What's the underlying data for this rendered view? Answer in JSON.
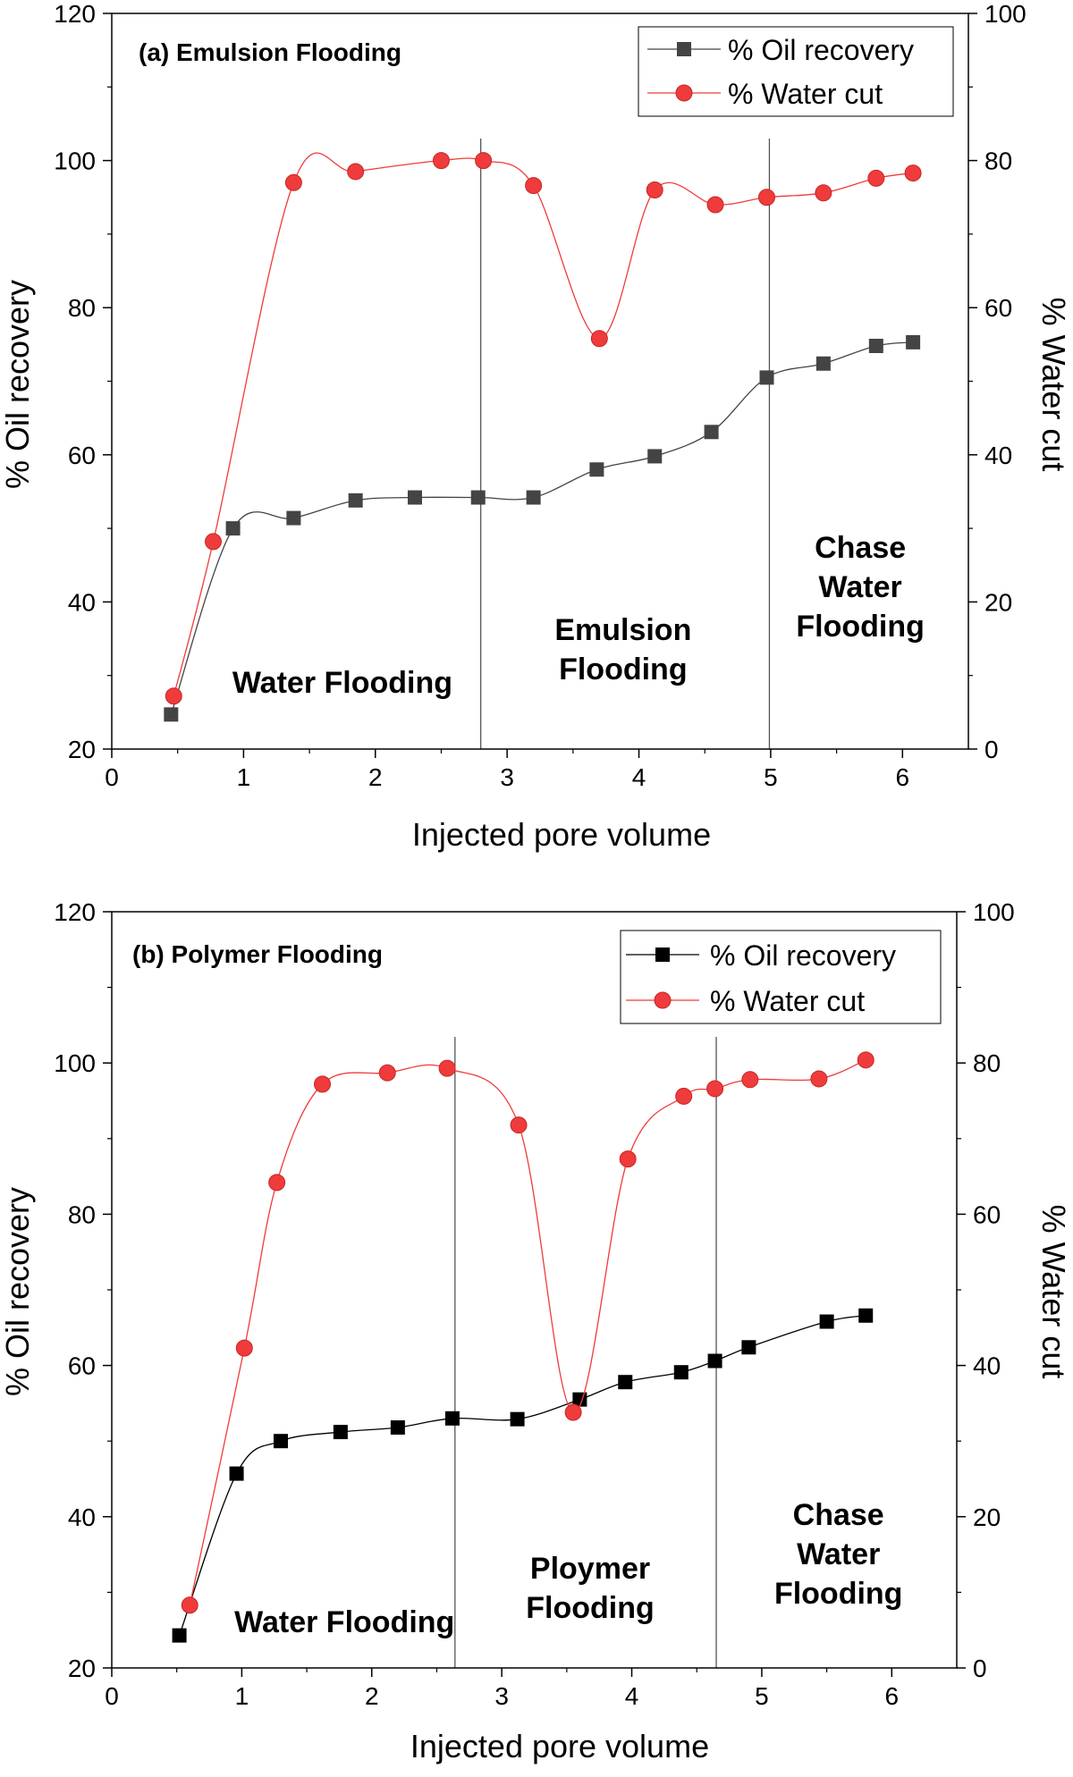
{
  "figure": {
    "background": "#ffffff",
    "colors": {
      "oil": "#444444",
      "oil_b": "#000000",
      "water": "#ef3b3b",
      "water_stroke": "#c62828",
      "axis": "#000000",
      "divider": "#555555"
    }
  },
  "chart_data": [
    {
      "id": "a",
      "type": "line",
      "title": "(a) Emulsion Flooding",
      "xlabel": "Injected pore volume",
      "ylabel": "% Oil recovery",
      "y2label": "% Water cut",
      "xlim": [
        0,
        6.5
      ],
      "ylim": [
        20,
        120
      ],
      "y2lim": [
        0,
        100
      ],
      "xticks": [
        0,
        1,
        2,
        3,
        4,
        5,
        6
      ],
      "yticks": [
        20,
        40,
        60,
        80,
        100,
        120
      ],
      "y2ticks": [
        0,
        20,
        40,
        60,
        80,
        100
      ],
      "legend_position": "top-right",
      "series": [
        {
          "name": "% Oil recovery",
          "axis": "left",
          "marker": "square",
          "x": [
            0.45,
            0.92,
            1.38,
            1.85,
            2.3,
            2.78,
            3.2,
            3.68,
            4.12,
            4.55,
            4.97,
            5.4,
            5.8,
            6.08
          ],
          "y": [
            24.7,
            50,
            51.4,
            53.8,
            54.2,
            54.2,
            54.2,
            58,
            59.8,
            63.1,
            70.5,
            72.4,
            74.8,
            75.3
          ]
        },
        {
          "name": "% Water cut",
          "axis": "right",
          "marker": "circle",
          "x": [
            0.47,
            0.77,
            1.38,
            1.85,
            2.5,
            2.82,
            3.2,
            3.7,
            4.12,
            4.58,
            4.97,
            5.4,
            5.8,
            6.08
          ],
          "y": [
            7.2,
            28.2,
            77,
            78.5,
            80,
            80,
            76.6,
            55.8,
            76,
            74,
            75,
            75.6,
            77.6,
            78.3
          ]
        }
      ],
      "dividers": [
        2.8,
        4.99
      ],
      "annotations": [
        {
          "id": "water",
          "lines": [
            "Water Flooding"
          ],
          "x": 1.75,
          "y": 29
        },
        {
          "id": "emulsion",
          "lines": [
            "Emulsion",
            "Flooding"
          ],
          "x": 3.88,
          "y": 33.5
        },
        {
          "id": "chase",
          "lines": [
            "Chase",
            "Water",
            "Flooding"
          ],
          "x": 5.68,
          "y": 42
        }
      ]
    },
    {
      "id": "b",
      "type": "line",
      "title": "(b) Polymer Flooding",
      "xlabel": "Injected pore volume",
      "ylabel": "% Oil recovery",
      "y2label": "% Water cut",
      "xlim": [
        0,
        6.5
      ],
      "ylim": [
        20,
        120
      ],
      "y2lim": [
        0,
        100
      ],
      "xticks": [
        0,
        1,
        2,
        3,
        4,
        5,
        6
      ],
      "yticks": [
        20,
        40,
        60,
        80,
        100,
        120
      ],
      "y2ticks": [
        0,
        20,
        40,
        60,
        80,
        100
      ],
      "legend_position": "top-right",
      "series": [
        {
          "name": "% Oil recovery",
          "axis": "left",
          "marker": "square",
          "x": [
            0.52,
            0.96,
            1.3,
            1.76,
            2.2,
            2.62,
            3.12,
            3.6,
            3.95,
            4.38,
            4.64,
            4.9,
            5.5,
            5.8
          ],
          "y": [
            24.3,
            45.7,
            50,
            51.2,
            51.8,
            53,
            52.9,
            55.5,
            57.8,
            59.1,
            60.6,
            62.4,
            65.8,
            66.6
          ]
        },
        {
          "name": "% Water cut",
          "axis": "right",
          "marker": "circle",
          "x": [
            0.6,
            1.02,
            1.27,
            1.62,
            2.12,
            2.58,
            3.13,
            3.55,
            3.97,
            4.4,
            4.64,
            4.91,
            5.44,
            5.8
          ],
          "y": [
            8.3,
            42.3,
            64.2,
            77.2,
            78.7,
            79.3,
            71.8,
            33.8,
            67.3,
            75.6,
            76.6,
            77.8,
            77.9,
            80.4
          ]
        }
      ],
      "dividers": [
        2.64,
        4.65
      ],
      "annotations": [
        {
          "id": "water",
          "lines": [
            "Water Flooding"
          ],
          "x": 1.79,
          "y": 26
        },
        {
          "id": "polymer",
          "lines": [
            "Ploymer",
            "Flooding"
          ],
          "x": 3.68,
          "y": 30.5
        },
        {
          "id": "chase",
          "lines": [
            "Chase",
            "Water",
            "Flooding"
          ],
          "x": 5.59,
          "y": 35
        }
      ]
    }
  ]
}
